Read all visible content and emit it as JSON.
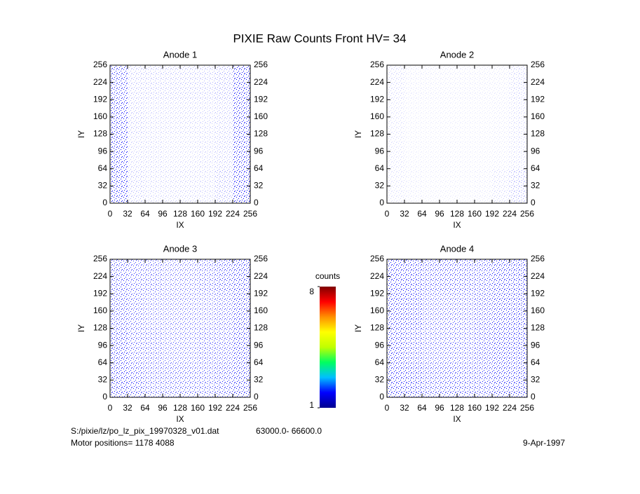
{
  "title": "PIXIE Raw Counts Front HV= 34",
  "footer": {
    "file": "S:/pixie/lz/po_lz_pix_19970328_v01.dat",
    "range": "63000.0- 66600.0",
    "motor": "Motor positions= 1178 4088",
    "date": "9-Apr-1997"
  },
  "chart_data": [
    {
      "type": "heatmap",
      "title": "Anode 1",
      "xlabel": "IX",
      "ylabel": "IY",
      "xlim": [
        0,
        256
      ],
      "ylim": [
        0,
        256
      ],
      "xticks": [
        0,
        32,
        64,
        96,
        128,
        160,
        192,
        224,
        256
      ],
      "yticks": [
        0,
        32,
        64,
        96,
        128,
        160,
        192,
        224,
        256
      ],
      "color": "#0000ff",
      "density": [
        [
          0.45,
          0.15,
          0.15,
          0.15,
          0.15,
          0.15,
          0.2,
          0.5
        ],
        [
          0.5,
          0.15,
          0.12,
          0.12,
          0.12,
          0.12,
          0.15,
          0.55
        ],
        [
          0.5,
          0.12,
          0.12,
          0.1,
          0.1,
          0.12,
          0.15,
          0.5
        ],
        [
          0.55,
          0.15,
          0.12,
          0.12,
          0.12,
          0.12,
          0.2,
          0.55
        ]
      ]
    },
    {
      "type": "heatmap",
      "title": "Anode 2",
      "xlabel": "IX",
      "ylabel": "IY",
      "xlim": [
        0,
        256
      ],
      "ylim": [
        0,
        256
      ],
      "xticks": [
        0,
        32,
        64,
        96,
        128,
        160,
        192,
        224,
        256
      ],
      "yticks": [
        0,
        32,
        64,
        96,
        128,
        160,
        192,
        224,
        256
      ],
      "color": "#0000ff",
      "density": [
        [
          0.1,
          0.06,
          0.06,
          0.06,
          0.06,
          0.06,
          0.06,
          0.12
        ],
        [
          0.08,
          0.05,
          0.05,
          0.05,
          0.05,
          0.05,
          0.06,
          0.1
        ],
        [
          0.08,
          0.05,
          0.05,
          0.05,
          0.05,
          0.05,
          0.06,
          0.1
        ],
        [
          0.08,
          0.06,
          0.05,
          0.05,
          0.05,
          0.06,
          0.1,
          0.18
        ]
      ]
    },
    {
      "type": "heatmap",
      "title": "Anode 3",
      "xlabel": "IX",
      "ylabel": "IY",
      "xlim": [
        0,
        256
      ],
      "ylim": [
        0,
        256
      ],
      "xticks": [
        0,
        32,
        64,
        96,
        128,
        160,
        192,
        224,
        256
      ],
      "yticks": [
        0,
        32,
        64,
        96,
        128,
        160,
        192,
        224,
        256
      ],
      "color": "#0000ff",
      "density": [
        [
          0.45,
          0.4,
          0.4,
          0.35,
          0.35,
          0.4,
          0.45,
          0.7
        ],
        [
          0.45,
          0.4,
          0.35,
          0.35,
          0.35,
          0.35,
          0.4,
          0.5
        ],
        [
          0.5,
          0.4,
          0.4,
          0.35,
          0.35,
          0.4,
          0.4,
          0.5
        ],
        [
          0.5,
          0.45,
          0.4,
          0.4,
          0.4,
          0.4,
          0.45,
          0.55
        ]
      ]
    },
    {
      "type": "heatmap",
      "title": "Anode 4",
      "xlabel": "IX",
      "ylabel": "IY",
      "xlim": [
        0,
        256
      ],
      "ylim": [
        0,
        256
      ],
      "xticks": [
        0,
        32,
        64,
        96,
        128,
        160,
        192,
        224,
        256
      ],
      "yticks": [
        0,
        32,
        64,
        96,
        128,
        160,
        192,
        224,
        256
      ],
      "color": "#0000ff",
      "density": [
        [
          0.65,
          0.5,
          0.45,
          0.45,
          0.45,
          0.45,
          0.55,
          0.9
        ],
        [
          0.6,
          0.5,
          0.4,
          0.4,
          0.4,
          0.45,
          0.5,
          0.9
        ],
        [
          0.6,
          0.45,
          0.4,
          0.4,
          0.4,
          0.45,
          0.5,
          0.9
        ],
        [
          0.7,
          0.5,
          0.45,
          0.45,
          0.45,
          0.45,
          0.55,
          0.95
        ]
      ]
    },
    {
      "type": "colorbar",
      "label": "counts",
      "lim": [
        1,
        8
      ],
      "ticks": [
        1,
        8
      ],
      "colors": [
        "#00008f",
        "#0000ff",
        "#00bfff",
        "#00ff60",
        "#c0ff00",
        "#ffff00",
        "#ff9000",
        "#ff0000",
        "#800000"
      ]
    }
  ]
}
